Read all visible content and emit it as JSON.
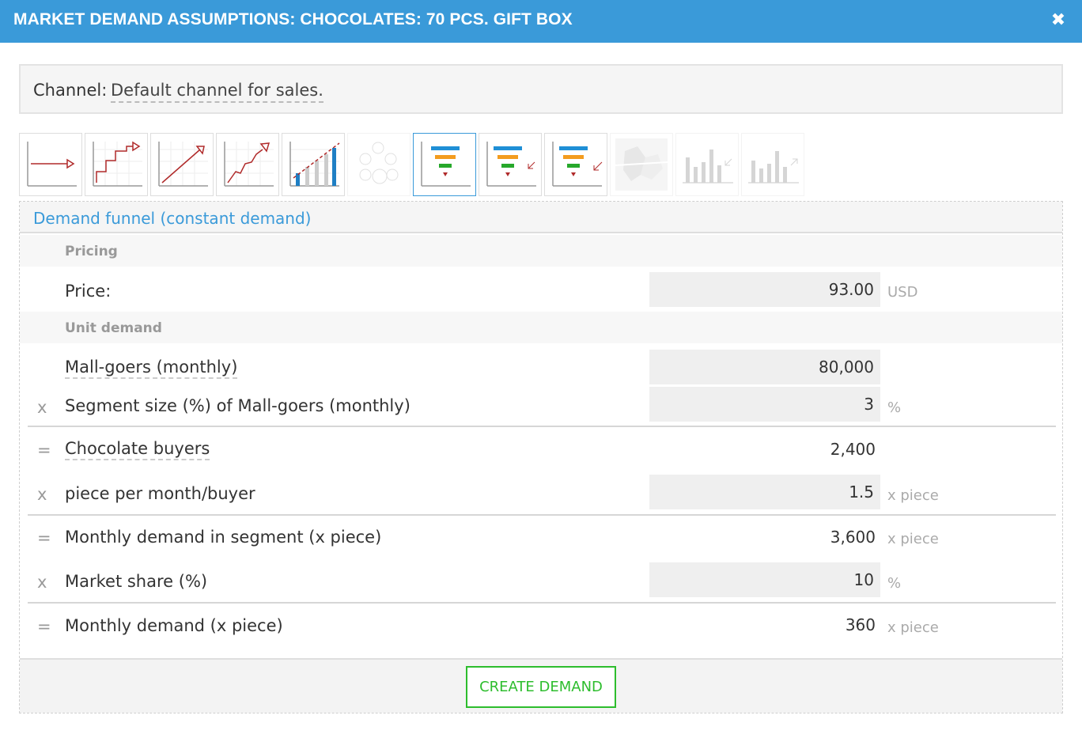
{
  "window": {
    "title": "MARKET DEMAND ASSUMPTIONS: CHOCOLATES: 70 PCS. GIFT BOX",
    "close_glyph": "✖"
  },
  "channel": {
    "label": "Channel:",
    "value": "Default channel for sales."
  },
  "method_icons": [
    {
      "name": "constant-demand-icon",
      "state": "normal"
    },
    {
      "name": "step-growth-icon",
      "state": "normal"
    },
    {
      "name": "linear-growth-icon",
      "state": "normal"
    },
    {
      "name": "variable-growth-icon",
      "state": "normal"
    },
    {
      "name": "bar-trend-icon",
      "state": "normal"
    },
    {
      "name": "people-segments-icon",
      "state": "disabled"
    },
    {
      "name": "funnel-constant-icon",
      "state": "selected"
    },
    {
      "name": "funnel-growth-icon",
      "state": "normal"
    },
    {
      "name": "funnel-decline-icon",
      "state": "normal"
    },
    {
      "name": "map-icon",
      "state": "disabled"
    },
    {
      "name": "bar-chart-import-icon",
      "state": "disabled"
    },
    {
      "name": "bar-chart-export-icon",
      "state": "disabled"
    }
  ],
  "panel": {
    "title": "Demand funnel (constant demand)",
    "pricing_section": "Pricing",
    "price_label": "Price:",
    "price_value": "93.00",
    "price_unit": "USD",
    "unit_demand_section": "Unit demand",
    "rows": [
      {
        "op": "",
        "label": "Mall-goers (monthly)",
        "value": "80,000",
        "unit": "",
        "editable": true
      },
      {
        "op": "x",
        "label": "Segment size (%) of Mall-goers (monthly)",
        "value": "3",
        "unit": "%",
        "editable": true
      },
      {
        "op": "=",
        "label": "Chocolate buyers",
        "value": "2,400",
        "unit": "",
        "editable": false
      },
      {
        "op": "x",
        "label": "piece per month/buyer",
        "value": "1.5",
        "unit": "x piece",
        "editable": true
      },
      {
        "op": "=",
        "label": "Monthly demand in segment (x piece)",
        "value": "3,600",
        "unit": "x piece",
        "editable": false
      },
      {
        "op": "x",
        "label": "Market share (%)",
        "value": "10",
        "unit": "%",
        "editable": true
      },
      {
        "op": "=",
        "label": "Monthly demand (x piece)",
        "value": "360",
        "unit": "x piece",
        "editable": false
      }
    ],
    "create_button": "CREATE DEMAND"
  },
  "colors": {
    "accent": "#3a9ad9",
    "button_green": "#2dbd2d",
    "funnel_blue": "#1f8fd6",
    "funnel_orange": "#f39c1f",
    "funnel_green": "#27a82b",
    "chart_red": "#b02a2a"
  }
}
